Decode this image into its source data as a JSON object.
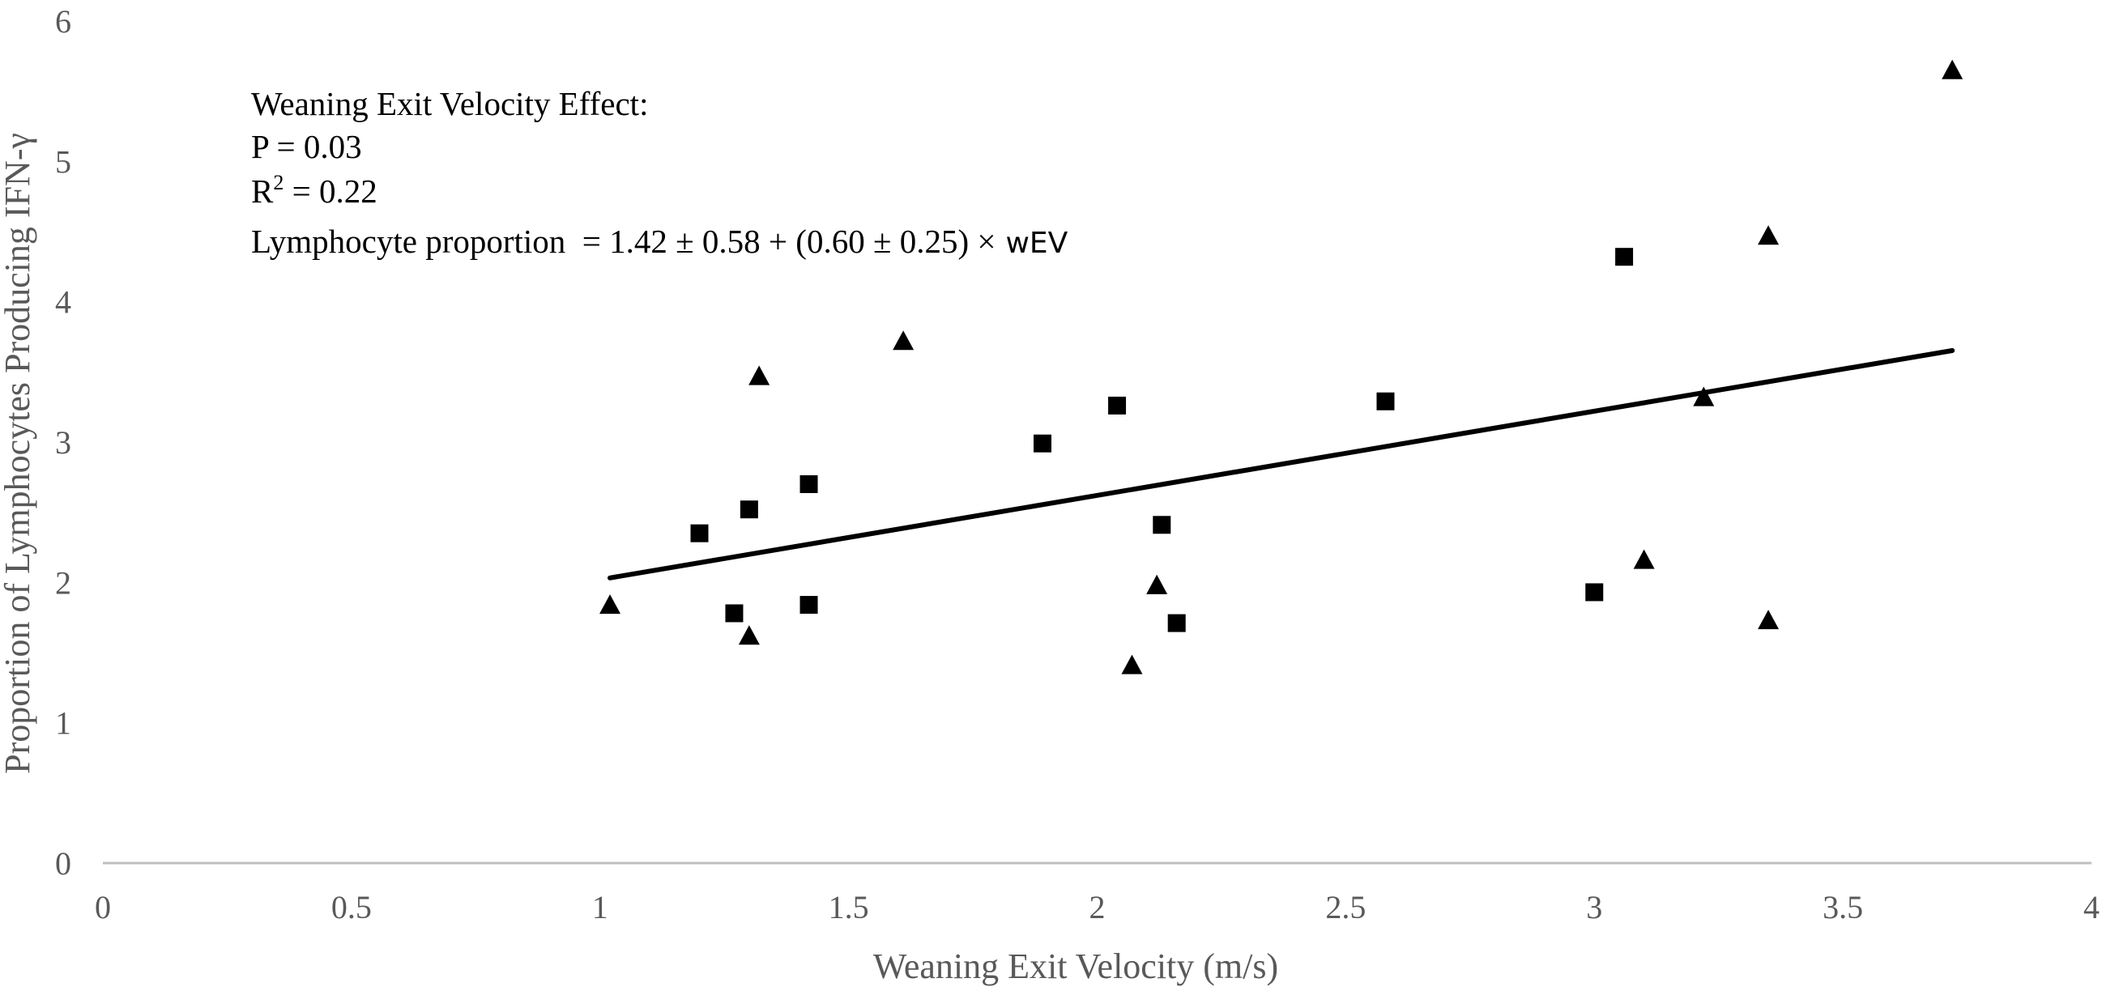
{
  "chart_data": {
    "type": "scatter",
    "title": "",
    "xlabel": "Weaning Exit Velocity (m/s)",
    "ylabel": "Proportion of Lymphocytes Producing IFN-γ",
    "xlim": [
      0,
      4
    ],
    "ylim": [
      0,
      6
    ],
    "x_ticks": [
      "0",
      "0.5",
      "1",
      "1.5",
      "2",
      "2.5",
      "3",
      "3.5",
      "4"
    ],
    "y_ticks": [
      "0",
      "1",
      "2",
      "3",
      "4",
      "5",
      "6"
    ],
    "grid": false,
    "series": [
      {
        "name": "squares",
        "marker": "square",
        "color": "#000000",
        "points": [
          {
            "x": 1.2,
            "y": 2.35
          },
          {
            "x": 1.27,
            "y": 1.78
          },
          {
            "x": 1.3,
            "y": 2.52
          },
          {
            "x": 1.42,
            "y": 2.7
          },
          {
            "x": 1.42,
            "y": 1.84
          },
          {
            "x": 1.89,
            "y": 2.99
          },
          {
            "x": 2.04,
            "y": 3.26
          },
          {
            "x": 2.13,
            "y": 2.41
          },
          {
            "x": 2.16,
            "y": 1.71
          },
          {
            "x": 2.58,
            "y": 3.29
          },
          {
            "x": 3.0,
            "y": 1.93
          },
          {
            "x": 3.06,
            "y": 4.32
          }
        ]
      },
      {
        "name": "triangles",
        "marker": "triangle",
        "color": "#000000",
        "points": [
          {
            "x": 1.02,
            "y": 1.84
          },
          {
            "x": 1.3,
            "y": 1.62
          },
          {
            "x": 1.32,
            "y": 3.47
          },
          {
            "x": 1.61,
            "y": 3.72
          },
          {
            "x": 2.07,
            "y": 1.41
          },
          {
            "x": 2.12,
            "y": 1.98
          },
          {
            "x": 3.1,
            "y": 2.16
          },
          {
            "x": 3.22,
            "y": 3.32
          },
          {
            "x": 3.35,
            "y": 4.47
          },
          {
            "x": 3.35,
            "y": 1.73
          },
          {
            "x": 3.72,
            "y": 5.65
          }
        ]
      }
    ],
    "trendline": {
      "x_start": 1.02,
      "x_end": 3.72,
      "intercept": 1.42,
      "slope": 0.6,
      "color": "#000000"
    },
    "annotation": {
      "line1": "Weaning Exit Velocity Effect:",
      "line2": "P = 0.03",
      "line3_prefix": "R",
      "line3_sup": "2",
      "line3_suffix": " = 0.22",
      "line4_serif": "Lymphocyte proportion  = 1.42 ± 0.58 + (0.60 ± 0.25) ×",
      "line4_sans": "wEV"
    }
  }
}
